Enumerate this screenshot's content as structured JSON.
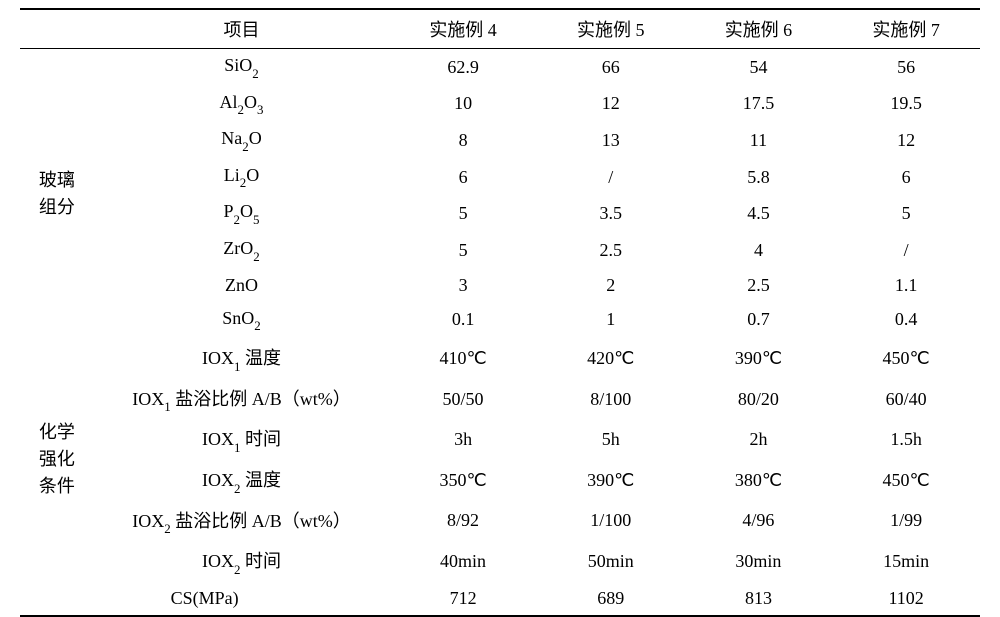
{
  "table": {
    "type": "table",
    "header": {
      "group_col": "",
      "item_col": "项目",
      "cols": [
        "实施例 4",
        "实施例 5",
        "实施例 6",
        "实施例 7"
      ]
    },
    "groups": [
      {
        "label_lines": [
          "玻璃",
          "组分"
        ],
        "rows": [
          {
            "item_plain": "SiO",
            "item_sub": "2",
            "item_after": "",
            "vals": [
              "62.9",
              "66",
              "54",
              "56"
            ]
          },
          {
            "item_plain": "Al",
            "item_sub": "2",
            "item_after": "O",
            "item_sub2": "3",
            "vals": [
              "10",
              "12",
              "17.5",
              "19.5"
            ]
          },
          {
            "item_plain": "Na",
            "item_sub": "2",
            "item_after": "O",
            "vals": [
              "8",
              "13",
              "11",
              "12"
            ]
          },
          {
            "item_plain": "Li",
            "item_sub": "2",
            "item_after": "O",
            "vals": [
              "6",
              "/",
              "5.8",
              "6"
            ]
          },
          {
            "item_plain": "P",
            "item_sub": "2",
            "item_after": "O",
            "item_sub2": "5",
            "vals": [
              "5",
              "3.5",
              "4.5",
              "5"
            ]
          },
          {
            "item_plain": "ZrO",
            "item_sub": "2",
            "item_after": "",
            "vals": [
              "5",
              "2.5",
              "4",
              "/"
            ]
          },
          {
            "item_plain": "ZnO",
            "item_sub": "",
            "item_after": "",
            "vals": [
              "3",
              "2",
              "2.5",
              "1.1"
            ]
          },
          {
            "item_plain": "SnO",
            "item_sub": "2",
            "item_after": "",
            "vals": [
              "0.1",
              "1",
              "0.7",
              "0.4"
            ]
          }
        ]
      },
      {
        "label_lines": [
          "化学",
          "强化",
          "条件"
        ],
        "rows": [
          {
            "item_pre": "IOX",
            "item_sub": "1",
            "item_post": "温度",
            "vals": [
              "410℃",
              "420℃",
              "390℃",
              "450℃"
            ]
          },
          {
            "item_pre": "IOX",
            "item_sub": "1",
            "item_post": "盐浴比例 A/B（wt%）",
            "vals": [
              "50/50",
              "8/100",
              "80/20",
              "60/40"
            ]
          },
          {
            "item_pre": "IOX",
            "item_sub": "1",
            "item_post": "时间",
            "vals": [
              "3h",
              "5h",
              "2h",
              "1.5h"
            ]
          },
          {
            "item_pre": "IOX",
            "item_sub": "2",
            "item_post": "温度",
            "vals": [
              "350℃",
              "390℃",
              "380℃",
              "450℃"
            ]
          },
          {
            "item_pre": "IOX",
            "item_sub": "2",
            "item_post": "盐浴比例 A/B（wt%）",
            "vals": [
              "8/92",
              "1/100",
              "4/96",
              "1/99"
            ]
          },
          {
            "item_pre": "IOX",
            "item_sub": "2",
            "item_post": "时间",
            "vals": [
              "40min",
              "50min",
              "30min",
              "15min"
            ]
          }
        ]
      }
    ],
    "footer_row": {
      "item": "CS(MPa)",
      "vals": [
        "712",
        "689",
        "813",
        "1102"
      ]
    },
    "styling": {
      "font_family": "serif",
      "font_size_pt": 14,
      "text_color": "#000000",
      "background_color": "#ffffff",
      "border_color": "#000000",
      "top_rule_width": 2,
      "mid_rule_width": 1.5,
      "bottom_rule_width": 2
    }
  }
}
